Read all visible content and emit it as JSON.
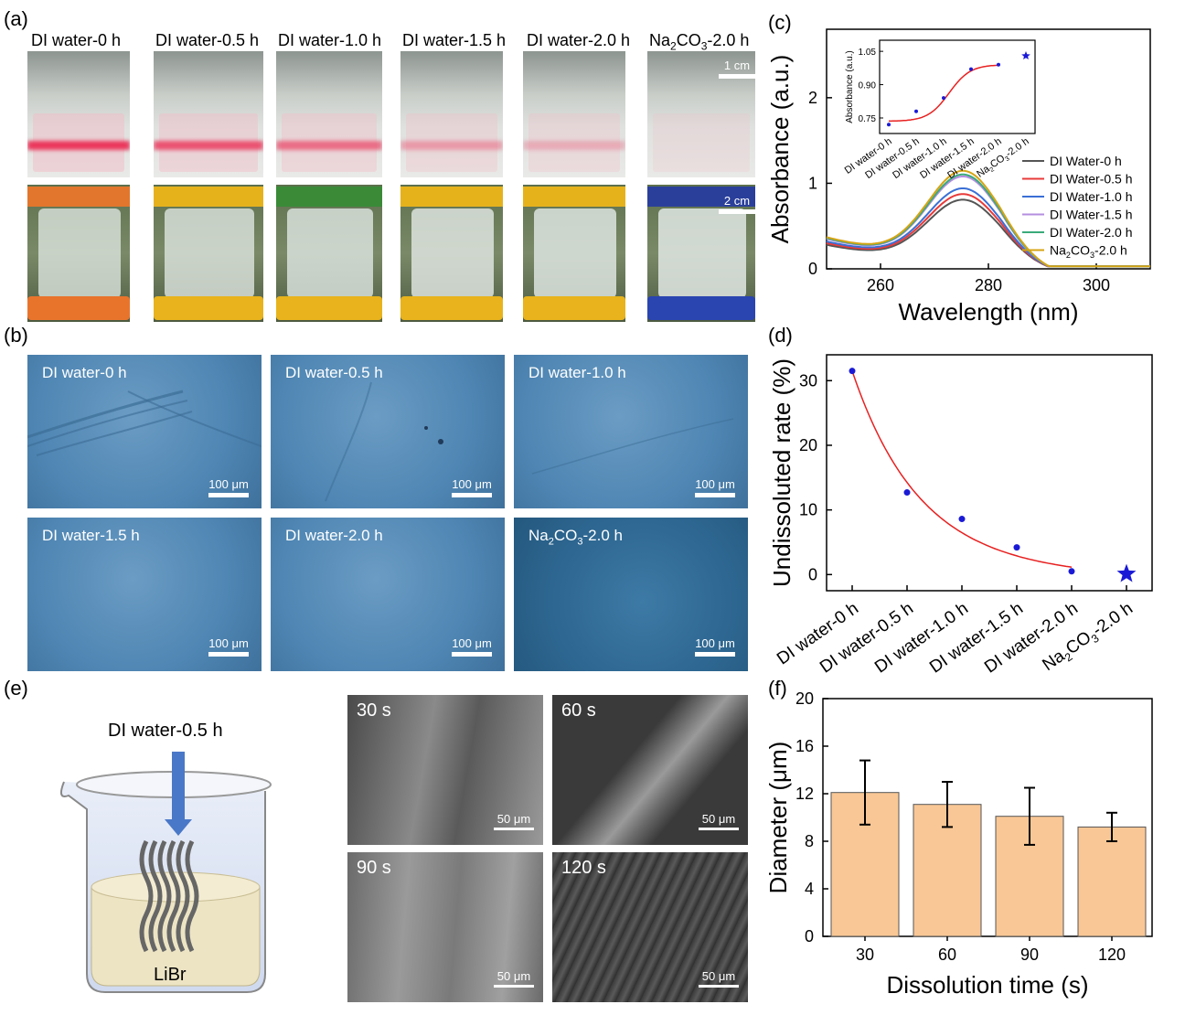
{
  "panel_labels": {
    "a": "(a)",
    "b": "(b)",
    "c": "(c)",
    "d": "(d)",
    "e": "(e)",
    "f": "(f)"
  },
  "photo_titles": [
    {
      "main": "DI water-0 h"
    },
    {
      "main": "DI water-0.5 h"
    },
    {
      "main": "DI water-1.0 h"
    },
    {
      "main": "DI water-1.5 h"
    },
    {
      "main": "DI water-2.0 h"
    },
    {
      "main": "Na",
      "sub": "2",
      "mid": "CO",
      "sub2": "3",
      "tail": "-2.0 h"
    }
  ],
  "photo_scale_top": "1 cm",
  "photo_scale_bottom": "2 cm",
  "micrographs": [
    {
      "title": "DI water-0 h",
      "scale": "100 μm"
    },
    {
      "title": "DI water-0.5 h",
      "scale": "100 μm"
    },
    {
      "title": "DI water-1.0 h",
      "scale": "100 μm"
    },
    {
      "title": "DI water-1.5 h",
      "scale": "100 μm"
    },
    {
      "title": "DI water-2.0 h",
      "scale": "100 μm"
    },
    {
      "title": "Na2CO3-2.0 h",
      "scale": "100 μm"
    }
  ],
  "schematic": {
    "arrow_label": "DI water-0.5 h",
    "liquid_label": "LiBr"
  },
  "sem": [
    {
      "title": "30 s",
      "scale": "50 μm"
    },
    {
      "title": "60 s",
      "scale": "50 μm"
    },
    {
      "title": "90 s",
      "scale": "50 μm"
    },
    {
      "title": "120 s",
      "scale": "50 μm"
    }
  ],
  "chart_data": [
    {
      "panel": "c",
      "type": "line",
      "xlabel": "Wavelength (nm)",
      "ylabel": "Absorbance (a.u.)",
      "xlim": [
        250,
        310
      ],
      "ylim": [
        0,
        2.8
      ],
      "xticks": [
        260,
        280,
        300
      ],
      "yticks": [
        0,
        1,
        2
      ],
      "legend_position": "right",
      "series": [
        {
          "name": "DI Water-0 h",
          "color": "#555555",
          "peak": 0.72,
          "base": 0.28
        },
        {
          "name": "DI Water-0.5 h",
          "color": "#e83a3a",
          "peak": 0.78,
          "base": 0.3
        },
        {
          "name": "DI Water-1.0 h",
          "color": "#3a6fd6",
          "peak": 0.84,
          "base": 0.32
        },
        {
          "name": "DI Water-1.5 h",
          "color": "#b48ee0",
          "peak": 0.97,
          "base": 0.35
        },
        {
          "name": "DI Water-2.0 h",
          "color": "#3aaa7a",
          "peak": 0.99,
          "base": 0.36
        },
        {
          "name": "Na2CO3-2.0 h",
          "color": "#d6a415",
          "peak": 1.03,
          "base": 0.37
        }
      ],
      "inset": {
        "type": "scatter",
        "ylabel": "Absorbance (a.u.)",
        "categories": [
          "DI water-0 h",
          "DI water-0.5 h",
          "DI water-1.0 h",
          "DI water-1.5 h",
          "DI water-2.0 h",
          "Na2CO3-2.0 h"
        ],
        "values": [
          0.72,
          0.78,
          0.84,
          0.97,
          0.99,
          1.03
        ],
        "ylim": [
          0.68,
          1.1
        ],
        "yticks": [
          0.75,
          0.9,
          1.05
        ]
      }
    },
    {
      "panel": "d",
      "type": "scatter",
      "ylabel": "Undissoluted rate (%)",
      "categories": [
        "DI water-0 h",
        "DI water-0.5 h",
        "DI water-1.0 h",
        "DI water-1.5 h",
        "DI water-2.0 h",
        "Na2CO3-2.0 h"
      ],
      "values": [
        31.5,
        12.7,
        8.6,
        4.2,
        0.5,
        0.1
      ],
      "ylim": [
        -2.5,
        34
      ],
      "yticks": [
        0,
        10,
        20,
        30
      ],
      "fit_color": "#e82020",
      "point_color": "#1a1ad6"
    },
    {
      "panel": "f",
      "type": "bar",
      "xlabel": "Dissolution time (s)",
      "ylabel": "Diameter (μm)",
      "categories": [
        "30",
        "60",
        "90",
        "120"
      ],
      "values": [
        12.1,
        11.1,
        10.1,
        9.2
      ],
      "errors": [
        2.7,
        1.9,
        2.4,
        1.2
      ],
      "ylim": [
        0,
        20
      ],
      "yticks": [
        0,
        4,
        8,
        12,
        16,
        20
      ],
      "bar_color": "#f9c795"
    }
  ]
}
